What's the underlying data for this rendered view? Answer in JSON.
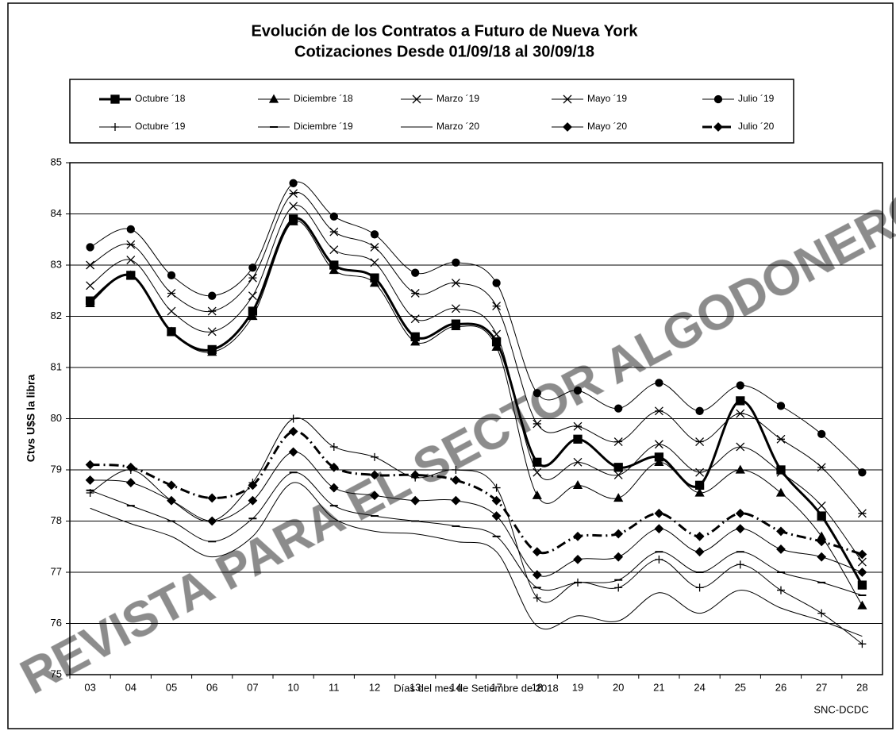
{
  "chart_data": {
    "type": "line",
    "title": "Evolución de los Contratos a Futuro de Nueva York",
    "subtitle": "Cotizaciones Desde 01/09/18 al 30/09/18",
    "x_label": "Días del mes de Setiembre de 2018",
    "y_label": "Ctvs U$S la libra",
    "source": "SNC-DCDC",
    "watermark": "REVISTA PARA EL SECTOR ALGODONERO",
    "categories": [
      "03",
      "04",
      "05",
      "06",
      "07",
      "10",
      "11",
      "12",
      "13",
      "14",
      "17",
      "18",
      "19",
      "20",
      "21",
      "24",
      "25",
      "26",
      "27",
      "28"
    ],
    "ylim": [
      75,
      85
    ],
    "yticks": [
      75,
      76,
      77,
      78,
      79,
      80,
      81,
      82,
      83,
      84,
      85
    ],
    "grid": true,
    "series": [
      {
        "name": "Octubre ´18",
        "color": "#000000",
        "marker": "square",
        "line_width": 3,
        "dash": "solid",
        "values": [
          82.3,
          82.8,
          81.7,
          81.35,
          82.1,
          83.9,
          83.0,
          82.75,
          81.6,
          81.85,
          81.5,
          79.15,
          79.6,
          79.05,
          79.25,
          78.7,
          80.35,
          79.0,
          78.1,
          76.75
        ]
      },
      {
        "name": "Diciembre ´18",
        "color": "#000000",
        "marker": "triangle",
        "line_width": 1,
        "dash": "solid",
        "values": [
          82.25,
          82.8,
          81.7,
          81.3,
          82.0,
          83.85,
          82.9,
          82.65,
          81.5,
          81.8,
          81.4,
          78.5,
          78.7,
          78.45,
          79.15,
          78.55,
          79.0,
          78.55,
          77.7,
          76.35
        ]
      },
      {
        "name": "Marzo ´19",
        "color": "#000000",
        "marker": "x",
        "line_width": 1,
        "dash": "solid",
        "values": [
          82.6,
          83.1,
          82.1,
          81.7,
          82.4,
          84.15,
          83.3,
          83.05,
          81.95,
          82.15,
          81.65,
          78.95,
          79.15,
          78.9,
          79.5,
          78.95,
          79.45,
          78.95,
          78.3,
          77.2
        ]
      },
      {
        "name": "Mayo ´19",
        "color": "#000000",
        "marker": "star",
        "line_width": 1,
        "dash": "solid",
        "values": [
          83.0,
          83.4,
          82.45,
          82.1,
          82.75,
          84.4,
          83.65,
          83.35,
          82.45,
          82.65,
          82.2,
          79.9,
          79.85,
          79.55,
          80.15,
          79.55,
          80.1,
          79.6,
          79.05,
          78.15
        ]
      },
      {
        "name": "Julio ´19",
        "color": "#000000",
        "marker": "circle",
        "line_width": 1,
        "dash": "solid",
        "values": [
          83.35,
          83.7,
          82.8,
          82.4,
          82.95,
          84.6,
          83.95,
          83.6,
          82.85,
          83.05,
          82.65,
          80.5,
          80.55,
          80.2,
          80.7,
          80.15,
          80.65,
          80.25,
          79.7,
          78.95
        ]
      },
      {
        "name": "Octubre ´19",
        "color": "#000000",
        "marker": "plus",
        "line_width": 1,
        "dash": "solid",
        "values": [
          78.55,
          79.0,
          78.4,
          78.0,
          78.75,
          80.0,
          79.45,
          79.25,
          78.85,
          79.0,
          78.65,
          76.5,
          76.8,
          76.7,
          77.25,
          76.7,
          77.15,
          76.65,
          76.2,
          75.6
        ]
      },
      {
        "name": "Diciembre ´19",
        "color": "#000000",
        "marker": "dash",
        "line_width": 1,
        "dash": "solid",
        "values": [
          78.6,
          78.3,
          78.0,
          77.6,
          78.05,
          78.95,
          78.3,
          78.1,
          78.0,
          77.9,
          77.7,
          76.7,
          76.8,
          76.85,
          77.4,
          77.0,
          77.4,
          77.0,
          76.8,
          76.55
        ]
      },
      {
        "name": "Marzo ´20",
        "color": "#000000",
        "marker": "none",
        "line_width": 1,
        "dash": "solid",
        "values": [
          78.25,
          77.95,
          77.7,
          77.3,
          77.7,
          78.75,
          78.05,
          77.8,
          77.75,
          77.6,
          77.4,
          75.95,
          76.15,
          76.05,
          76.6,
          76.2,
          76.65,
          76.3,
          76.05,
          75.75
        ]
      },
      {
        "name": "Mayo ´20",
        "color": "#000000",
        "marker": "diamond",
        "line_width": 1,
        "dash": "solid",
        "values": [
          78.8,
          78.75,
          78.4,
          78.0,
          78.4,
          79.35,
          78.65,
          78.5,
          78.4,
          78.4,
          78.1,
          76.95,
          77.25,
          77.3,
          77.85,
          77.4,
          77.85,
          77.45,
          77.3,
          77.0
        ]
      },
      {
        "name": "Julio ´20",
        "color": "#000000",
        "marker": "diamond",
        "line_width": 3,
        "dash": "dashdot",
        "values": [
          79.1,
          79.05,
          78.7,
          78.45,
          78.7,
          79.75,
          79.05,
          78.9,
          78.9,
          78.8,
          78.4,
          77.4,
          77.7,
          77.75,
          78.15,
          77.7,
          78.15,
          77.8,
          77.6,
          77.35
        ]
      }
    ]
  }
}
